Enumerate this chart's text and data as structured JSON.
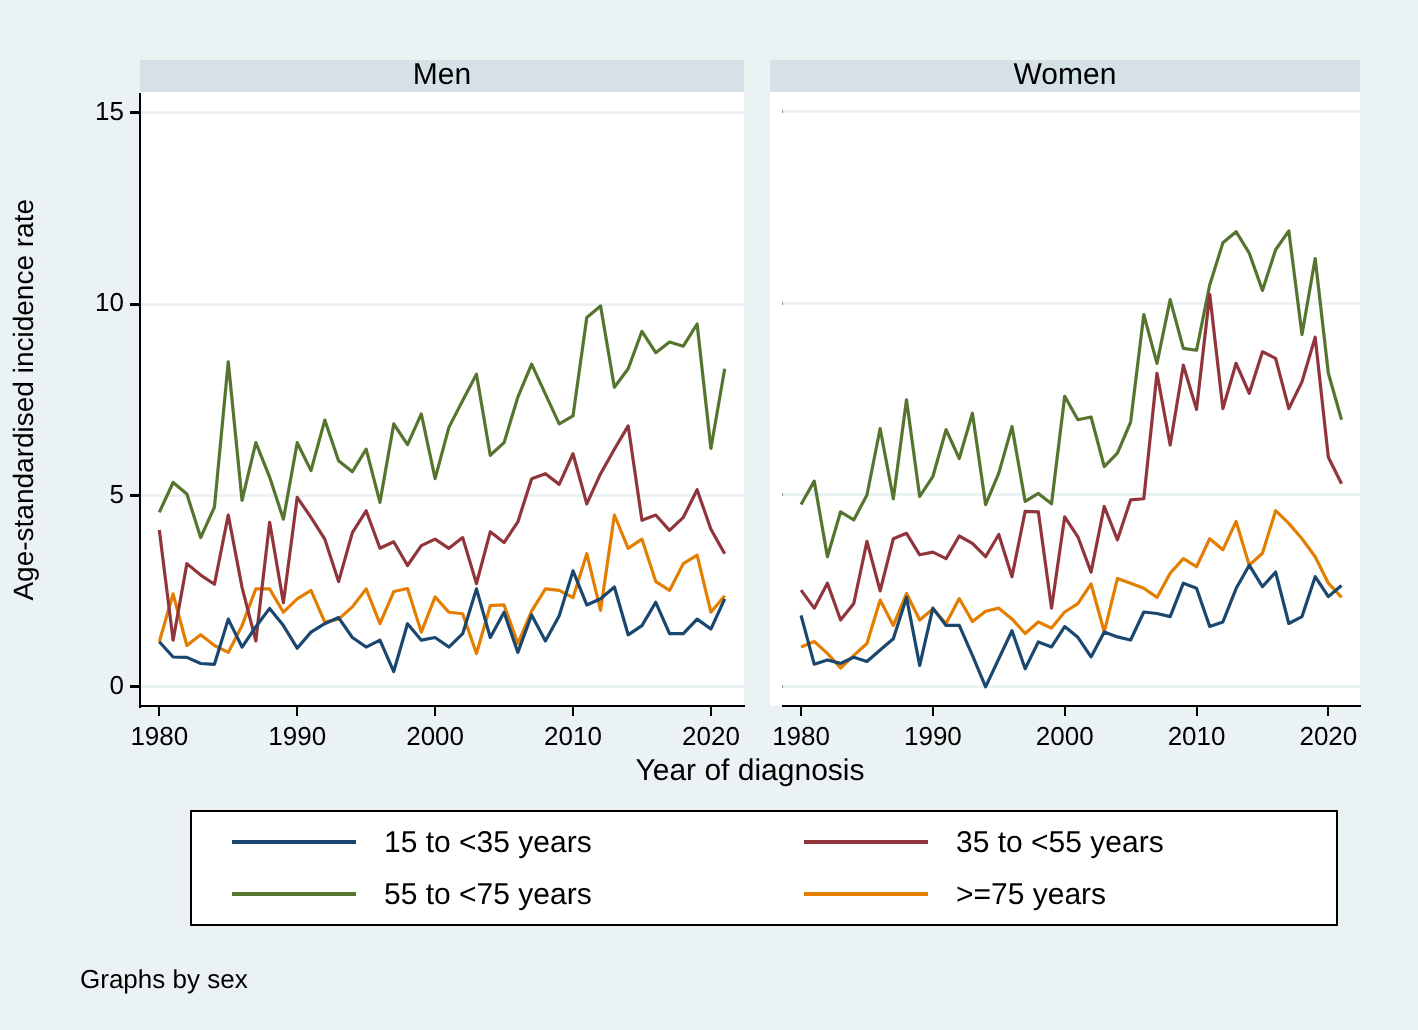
{
  "chart_data": [
    {
      "type": "line",
      "title": "Men",
      "xlabel": "Year of diagnosis",
      "ylabel": "Age-standardised incidence rate",
      "legend": "bottom",
      "annotations": [
        "Graphs by sex"
      ],
      "grid": "y",
      "xlim": [
        1978.6,
        2022.4
      ],
      "ylim": [
        -0.5,
        15.5
      ],
      "xticks": [
        1980,
        1990,
        2000,
        2010,
        2020
      ],
      "yticks": [
        0,
        5,
        10,
        15
      ],
      "x": [
        1980,
        1981,
        1982,
        1983,
        1984,
        1985,
        1986,
        1987,
        1988,
        1989,
        1990,
        1991,
        1992,
        1993,
        1994,
        1995,
        1996,
        1997,
        1998,
        1999,
        2000,
        2001,
        2002,
        2003,
        2004,
        2005,
        2006,
        2007,
        2008,
        2009,
        2010,
        2011,
        2012,
        2013,
        2014,
        2015,
        2016,
        2017,
        2018,
        2019,
        2020,
        2021
      ],
      "series": [
        {
          "name": "15 to <35 years",
          "color": "#1a476f",
          "values": [
            1.18,
            0.78,
            0.77,
            0.61,
            0.59,
            1.77,
            1.04,
            1.57,
            2.05,
            1.6,
            1.01,
            1.43,
            1.65,
            1.81,
            1.29,
            1.04,
            1.22,
            0.4,
            1.65,
            1.22,
            1.29,
            1.04,
            1.39,
            2.56,
            1.29,
            1.95,
            0.9,
            1.88,
            1.2,
            1.86,
            3.03,
            2.14,
            2.3,
            2.61,
            1.36,
            1.6,
            2.21,
            1.39,
            1.39,
            1.77,
            1.51,
            2.3
          ]
        },
        {
          "name": "35 to <55 years",
          "color": "#90353b",
          "values": [
            4.1,
            1.22,
            3.22,
            2.92,
            2.68,
            4.49,
            2.6,
            1.2,
            4.3,
            2.2,
            4.95,
            4.43,
            3.86,
            2.75,
            4.03,
            4.6,
            3.62,
            3.79,
            3.17,
            3.69,
            3.86,
            3.62,
            3.9,
            2.7,
            4.05,
            3.77,
            4.31,
            5.44,
            5.57,
            5.29,
            6.09,
            4.78,
            5.57,
            6.21,
            6.82,
            4.35,
            4.49,
            4.09,
            4.43,
            5.15,
            4.12,
            3.48
          ]
        },
        {
          "name": "55 to <75 years",
          "color": "#55752f",
          "values": [
            4.56,
            5.34,
            5.04,
            3.9,
            4.7,
            8.49,
            4.87,
            6.38,
            5.48,
            4.38,
            6.38,
            5.65,
            6.97,
            5.91,
            5.62,
            6.21,
            4.82,
            6.87,
            6.33,
            7.13,
            5.44,
            6.78,
            7.48,
            8.17,
            6.05,
            6.38,
            7.57,
            8.43,
            7.65,
            6.87,
            7.08,
            9.65,
            9.95,
            7.83,
            8.31,
            9.29,
            8.73,
            9.01,
            8.9,
            9.48,
            6.23,
            8.31
          ]
        },
        {
          "name": ">=75 years",
          "color": "#e37e00",
          "values": [
            1.18,
            2.43,
            1.08,
            1.36,
            1.08,
            0.9,
            1.6,
            2.56,
            2.56,
            1.95,
            2.3,
            2.52,
            1.69,
            1.77,
            2.09,
            2.56,
            1.65,
            2.49,
            2.57,
            1.43,
            2.35,
            1.95,
            1.91,
            0.87,
            2.12,
            2.14,
            1.13,
            1.98,
            2.56,
            2.52,
            2.33,
            3.48,
            2.0,
            4.49,
            3.62,
            3.86,
            2.75,
            2.52,
            3.22,
            3.44,
            1.95,
            2.38
          ]
        }
      ]
    },
    {
      "type": "line",
      "title": "Women",
      "grid": "y",
      "tick_labels": "x",
      "xlim": [
        1978.6,
        2022.4
      ],
      "ylim": [
        -0.5,
        15.5
      ],
      "xticks": [
        1980,
        1990,
        2000,
        2010,
        2020
      ],
      "yticks": [
        0,
        5,
        10,
        15
      ],
      "x": [
        1980,
        1981,
        1982,
        1983,
        1984,
        1985,
        1986,
        1987,
        1988,
        1989,
        1990,
        1991,
        1992,
        1993,
        1994,
        1995,
        1996,
        1997,
        1998,
        1999,
        2000,
        2001,
        2002,
        2003,
        2004,
        2005,
        2006,
        2007,
        2008,
        2009,
        2010,
        2011,
        2012,
        2013,
        2014,
        2015,
        2016,
        2017,
        2018,
        2019,
        2020,
        2021
      ],
      "series": [
        {
          "color": "#1a476f",
          "values": [
            1.86,
            0.59,
            0.7,
            0.61,
            0.77,
            0.66,
            0.96,
            1.25,
            2.33,
            0.56,
            2.05,
            1.6,
            1.6,
            0.82,
            0,
            0.73,
            1.46,
            0.47,
            1.17,
            1.04,
            1.57,
            1.29,
            0.78,
            1.43,
            1.3,
            1.22,
            1.95,
            1.91,
            1.83,
            2.7,
            2.57,
            1.57,
            1.69,
            2.56,
            3.17,
            2.61,
            2.99,
            1.65,
            1.83,
            2.87,
            2.35,
            2.64
          ]
        },
        {
          "color": "#90353b",
          "values": [
            2.52,
            2.05,
            2.7,
            1.74,
            2.17,
            3.79,
            2.5,
            3.86,
            4.0,
            3.44,
            3.51,
            3.34,
            3.93,
            3.74,
            3.39,
            3.97,
            2.87,
            4.57,
            4.56,
            2.05,
            4.43,
            3.91,
            2.99,
            4.7,
            3.83,
            4.87,
            4.9,
            8.17,
            6.3,
            8.38,
            7.23,
            10.23,
            7.25,
            8.43,
            7.65,
            8.73,
            8.56,
            7.25,
            7.95,
            9.11,
            5.98,
            5.29
          ]
        },
        {
          "color": "#55752f",
          "values": [
            4.75,
            5.36,
            3.39,
            4.56,
            4.35,
            5.0,
            6.73,
            4.9,
            7.48,
            4.96,
            5.48,
            6.7,
            5.95,
            7.13,
            4.75,
            5.57,
            6.78,
            4.83,
            5.04,
            4.77,
            7.57,
            6.96,
            7.03,
            5.74,
            6.09,
            6.9,
            9.7,
            8.43,
            10.09,
            8.82,
            8.77,
            10.47,
            11.57,
            11.86,
            11.3,
            10.33,
            11.39,
            11.88,
            9.18,
            11.16,
            8.17,
            6.96
          ]
        },
        {
          "color": "#e37e00",
          "values": [
            1.04,
            1.18,
            0.87,
            0.49,
            0.82,
            1.13,
            2.26,
            1.6,
            2.43,
            1.74,
            2.03,
            1.65,
            2.3,
            1.7,
            1.97,
            2.05,
            1.77,
            1.39,
            1.69,
            1.53,
            1.95,
            2.17,
            2.68,
            1.43,
            2.82,
            2.7,
            2.57,
            2.33,
            2.96,
            3.34,
            3.13,
            3.86,
            3.57,
            4.31,
            3.17,
            3.48,
            4.59,
            4.26,
            3.86,
            3.39,
            2.7,
            2.33
          ]
        }
      ]
    }
  ]
}
